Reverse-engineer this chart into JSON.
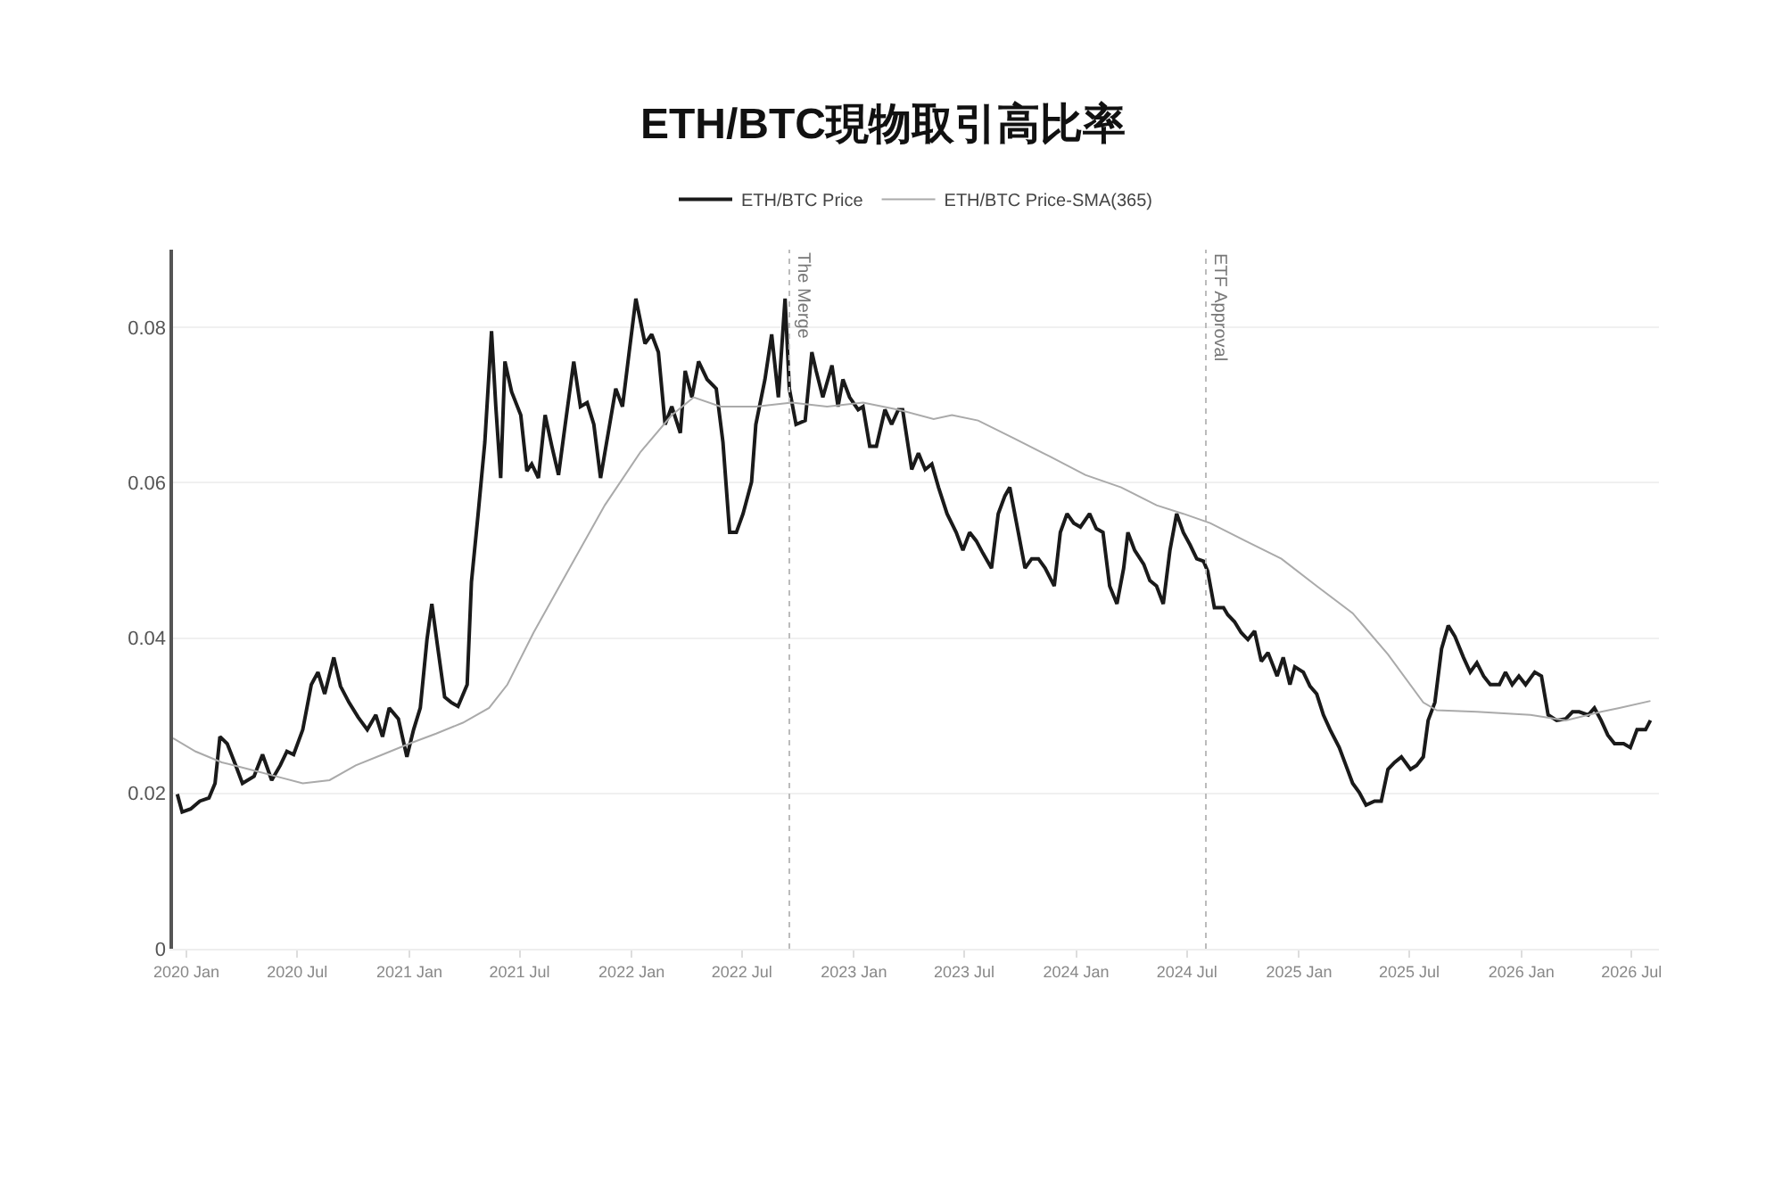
{
  "chart_data": {
    "type": "line",
    "title": "ETH/BTC現物取引高比率",
    "xlim": [
      "2019-12-10",
      "2026-08-15"
    ],
    "xticks": [
      {
        "value": "2020-01",
        "label": "2020 Jan"
      },
      {
        "value": "2020-07",
        "label": "2020 Jul"
      },
      {
        "value": "2021-01",
        "label": "2021 Jan"
      },
      {
        "value": "2021-07",
        "label": "2021 Jul"
      },
      {
        "value": "2022-01",
        "label": "2022 Jan"
      },
      {
        "value": "2022-07",
        "label": "2022 Jul"
      },
      {
        "value": "2023-01",
        "label": "2023 Jan"
      },
      {
        "value": "2023-07",
        "label": "2023 Jul"
      },
      {
        "value": "2024-01",
        "label": "2024 Jan"
      },
      {
        "value": "2024-07",
        "label": "2024 Jul"
      },
      {
        "value": "2025-01",
        "label": "2025 Jan"
      },
      {
        "value": "2025-07",
        "label": "2025 Jul"
      },
      {
        "value": "2026-01",
        "label": "2026 Jan"
      },
      {
        "value": "2026-07",
        "label": "2026 Jul"
      }
    ],
    "ylim": [
      0,
      0.09
    ],
    "yticks": [
      0,
      0.02,
      0.04,
      0.06,
      0.08
    ],
    "grid": "y",
    "legend": "top",
    "marker": "none",
    "line_style": "solid",
    "ref_lines": [
      {
        "axis": "x",
        "value": "2022-09-17",
        "label": "The Merge",
        "color": "#bbbbbb",
        "line_style": "dotted"
      },
      {
        "axis": "x",
        "value": "2024-08-01",
        "label": "ETF Approval",
        "color": "#bbbbbb",
        "line_style": "dotted"
      }
    ],
    "series": [
      {
        "name": "ETH/BTC Price",
        "color": "#1a1a1a",
        "x": [
          "2019-12-17",
          "2019-12-25",
          "2020-01-08",
          "2020-01-23",
          "2020-02-07",
          "2020-02-17",
          "2020-02-25",
          "2020-03-08",
          "2020-03-22",
          "2020-04-02",
          "2020-04-21",
          "2020-05-05",
          "2020-05-20",
          "2020-06-03",
          "2020-06-14",
          "2020-06-25",
          "2020-07-10",
          "2020-07-24",
          "2020-08-04",
          "2020-08-15",
          "2020-08-30",
          "2020-09-10",
          "2020-09-24",
          "2020-10-09",
          "2020-10-24",
          "2020-11-07",
          "2020-11-18",
          "2020-11-29",
          "2020-12-14",
          "2020-12-28",
          "2021-01-08",
          "2021-01-19",
          "2021-01-30",
          "2021-02-07",
          "2021-02-17",
          "2021-02-28",
          "2021-03-11",
          "2021-03-22",
          "2021-04-06",
          "2021-04-13",
          "2021-04-24",
          "2021-05-05",
          "2021-05-16",
          "2021-05-23",
          "2021-05-31",
          "2021-06-07",
          "2021-06-18",
          "2021-07-03",
          "2021-07-13",
          "2021-07-21",
          "2021-08-01",
          "2021-08-12",
          "2021-08-23",
          "2021-09-03",
          "2021-09-14",
          "2021-09-28",
          "2021-10-09",
          "2021-10-20",
          "2021-10-31",
          "2021-11-11",
          "2021-11-26",
          "2021-12-06",
          "2021-12-17",
          "2021-12-28",
          "2022-01-08",
          "2022-01-23",
          "2022-02-03",
          "2022-02-14",
          "2022-02-25",
          "2022-03-08",
          "2022-03-22",
          "2022-03-30",
          "2022-04-10",
          "2022-04-21",
          "2022-05-05",
          "2022-05-20",
          "2022-05-31",
          "2022-06-11",
          "2022-06-22",
          "2022-07-03",
          "2022-07-17",
          "2022-07-24",
          "2022-08-08",
          "2022-08-19",
          "2022-08-30",
          "2022-09-10",
          "2022-09-17",
          "2022-09-28",
          "2022-10-13",
          "2022-10-24",
          "2022-10-31",
          "2022-11-11",
          "2022-11-26",
          "2022-12-06",
          "2022-12-14",
          "2022-12-25",
          "2023-01-08",
          "2023-01-16",
          "2023-01-27",
          "2023-02-07",
          "2023-02-21",
          "2023-03-04",
          "2023-03-15",
          "2023-03-22",
          "2023-04-06",
          "2023-04-17",
          "2023-04-28",
          "2023-05-09",
          "2023-05-20",
          "2023-06-03",
          "2023-06-18",
          "2023-06-29",
          "2023-07-10",
          "2023-07-21",
          "2023-08-01",
          "2023-08-15",
          "2023-08-26",
          "2023-09-06",
          "2023-09-14",
          "2023-09-28",
          "2023-10-09",
          "2023-10-20",
          "2023-10-31",
          "2023-11-11",
          "2023-11-26",
          "2023-12-06",
          "2023-12-17",
          "2023-12-28",
          "2024-01-08",
          "2024-01-23",
          "2024-02-03",
          "2024-02-14",
          "2024-02-25",
          "2024-03-08",
          "2024-03-19",
          "2024-03-26",
          "2024-04-06",
          "2024-04-21",
          "2024-05-01",
          "2024-05-12",
          "2024-05-23",
          "2024-06-03",
          "2024-06-14",
          "2024-06-25",
          "2024-07-06",
          "2024-07-17",
          "2024-07-28",
          "2024-08-04",
          "2024-08-15",
          "2024-08-30",
          "2024-09-06",
          "2024-09-17",
          "2024-09-28",
          "2024-10-09",
          "2024-10-20",
          "2024-10-31",
          "2024-11-11",
          "2024-11-26",
          "2024-12-06",
          "2024-12-17",
          "2024-12-25",
          "2025-01-08",
          "2025-01-19",
          "2025-01-30",
          "2025-02-10",
          "2025-02-21",
          "2025-03-08",
          "2025-03-19",
          "2025-03-30",
          "2025-04-10",
          "2025-04-21",
          "2025-05-05",
          "2025-05-16",
          "2025-05-27",
          "2025-06-07",
          "2025-06-18",
          "2025-07-03",
          "2025-07-13",
          "2025-07-24",
          "2025-08-01",
          "2025-08-12",
          "2025-08-23",
          "2025-09-03",
          "2025-09-14",
          "2025-09-28",
          "2025-10-09",
          "2025-10-20",
          "2025-10-31",
          "2025-11-11",
          "2025-11-26",
          "2025-12-06",
          "2025-12-17",
          "2025-12-28",
          "2026-01-08",
          "2026-01-23",
          "2026-02-03",
          "2026-02-14",
          "2026-02-28",
          "2026-03-15",
          "2026-03-26",
          "2026-04-06",
          "2026-04-21",
          "2026-05-01",
          "2026-05-12",
          "2026-05-23",
          "2026-06-03",
          "2026-06-18",
          "2026-06-29",
          "2026-07-10",
          "2026-07-24",
          "2026-08-01"
        ],
        "values": [
          0.0199,
          0.0176,
          0.018,
          0.019,
          0.0194,
          0.0213,
          0.0273,
          0.0264,
          0.0236,
          0.0213,
          0.0222,
          0.025,
          0.0217,
          0.0236,
          0.0254,
          0.025,
          0.0282,
          0.034,
          0.0356,
          0.0328,
          0.0375,
          0.0338,
          0.0317,
          0.0298,
          0.0282,
          0.0301,
          0.0273,
          0.031,
          0.0296,
          0.0247,
          0.0282,
          0.031,
          0.0398,
          0.0444,
          0.0386,
          0.0324,
          0.0317,
          0.0312,
          0.034,
          0.0472,
          0.056,
          0.0652,
          0.0795,
          0.0698,
          0.0606,
          0.0756,
          0.0717,
          0.0687,
          0.0615,
          0.0624,
          0.0606,
          0.0687,
          0.0647,
          0.061,
          0.0675,
          0.0756,
          0.0698,
          0.0703,
          0.0675,
          0.0606,
          0.0675,
          0.0721,
          0.0698,
          0.0768,
          0.0837,
          0.0779,
          0.0791,
          0.0768,
          0.0675,
          0.0698,
          0.0664,
          0.0744,
          0.071,
          0.0756,
          0.0733,
          0.0721,
          0.0652,
          0.0536,
          0.0536,
          0.056,
          0.0601,
          0.0675,
          0.0733,
          0.0791,
          0.071,
          0.0837,
          0.0721,
          0.0675,
          0.068,
          0.0768,
          0.0744,
          0.071,
          0.0751,
          0.0698,
          0.0733,
          0.071,
          0.0694,
          0.0698,
          0.0647,
          0.0647,
          0.0694,
          0.0675,
          0.0694,
          0.0694,
          0.0617,
          0.0638,
          0.0617,
          0.0624,
          0.0594,
          0.056,
          0.0536,
          0.0513,
          0.0536,
          0.0525,
          0.0509,
          0.049,
          0.056,
          0.0583,
          0.0594,
          0.0536,
          0.049,
          0.0502,
          0.0502,
          0.049,
          0.0467,
          0.0536,
          0.056,
          0.0548,
          0.0543,
          0.056,
          0.0541,
          0.0536,
          0.0467,
          0.0444,
          0.049,
          0.0536,
          0.0513,
          0.0495,
          0.0474,
          0.0467,
          0.0444,
          0.0513,
          0.056,
          0.0536,
          0.052,
          0.0502,
          0.0499,
          0.0486,
          0.0439,
          0.0439,
          0.043,
          0.0421,
          0.0407,
          0.0398,
          0.0409,
          0.037,
          0.0381,
          0.0351,
          0.0375,
          0.034,
          0.0363,
          0.0356,
          0.0338,
          0.0328,
          0.0301,
          0.0282,
          0.0259,
          0.0236,
          0.0213,
          0.0201,
          0.0185,
          0.019,
          0.019,
          0.0231,
          0.024,
          0.0247,
          0.0231,
          0.0236,
          0.0247,
          0.0294,
          0.0317,
          0.0386,
          0.0416,
          0.0402,
          0.0375,
          0.0356,
          0.0368,
          0.0351,
          0.034,
          0.034,
          0.0356,
          0.034,
          0.0351,
          0.034,
          0.0356,
          0.0351,
          0.0301,
          0.0294,
          0.0296,
          0.0305,
          0.0305,
          0.0301,
          0.031,
          0.0294,
          0.0275,
          0.0264,
          0.0264,
          0.0259,
          0.0282,
          0.0282,
          0.0294
        ]
      },
      {
        "name": "ETH/BTC Price-SMA(365)",
        "color": "#aaaaaa",
        "x": [
          "2019-12-10",
          "2020-01-16",
          "2020-02-28",
          "2020-04-13",
          "2020-05-27",
          "2020-07-10",
          "2020-08-23",
          "2020-10-05",
          "2020-11-18",
          "2021-01-01",
          "2021-02-14",
          "2021-03-30",
          "2021-05-12",
          "2021-06-11",
          "2021-07-24",
          "2021-09-21",
          "2021-11-18",
          "2022-01-16",
          "2022-03-08",
          "2022-04-13",
          "2022-05-27",
          "2022-07-24",
          "2022-09-21",
          "2022-11-18",
          "2023-01-16",
          "2023-03-15",
          "2023-05-12",
          "2023-06-11",
          "2023-07-24",
          "2023-09-21",
          "2023-11-18",
          "2024-01-16",
          "2024-03-15",
          "2024-05-12",
          "2024-06-25",
          "2024-08-08",
          "2024-10-05",
          "2024-12-03",
          "2025-01-30",
          "2025-03-30",
          "2025-05-27",
          "2025-07-24",
          "2025-08-15",
          "2025-10-20",
          "2026-01-16",
          "2026-03-15",
          "2026-05-12",
          "2026-06-11",
          "2026-08-01"
        ],
        "values": [
          0.0271,
          0.0254,
          0.024,
          0.0231,
          0.0222,
          0.0213,
          0.0217,
          0.0236,
          0.025,
          0.0264,
          0.0277,
          0.0291,
          0.031,
          0.034,
          0.0407,
          0.049,
          0.0571,
          0.064,
          0.0687,
          0.071,
          0.0698,
          0.0698,
          0.0703,
          0.0698,
          0.0703,
          0.0694,
          0.0682,
          0.0687,
          0.068,
          0.0657,
          0.0634,
          0.061,
          0.0594,
          0.0571,
          0.056,
          0.0548,
          0.0525,
          0.0502,
          0.0467,
          0.0432,
          0.0379,
          0.0317,
          0.0307,
          0.0305,
          0.0301,
          0.0294,
          0.0305,
          0.031,
          0.0319
        ]
      }
    ]
  }
}
